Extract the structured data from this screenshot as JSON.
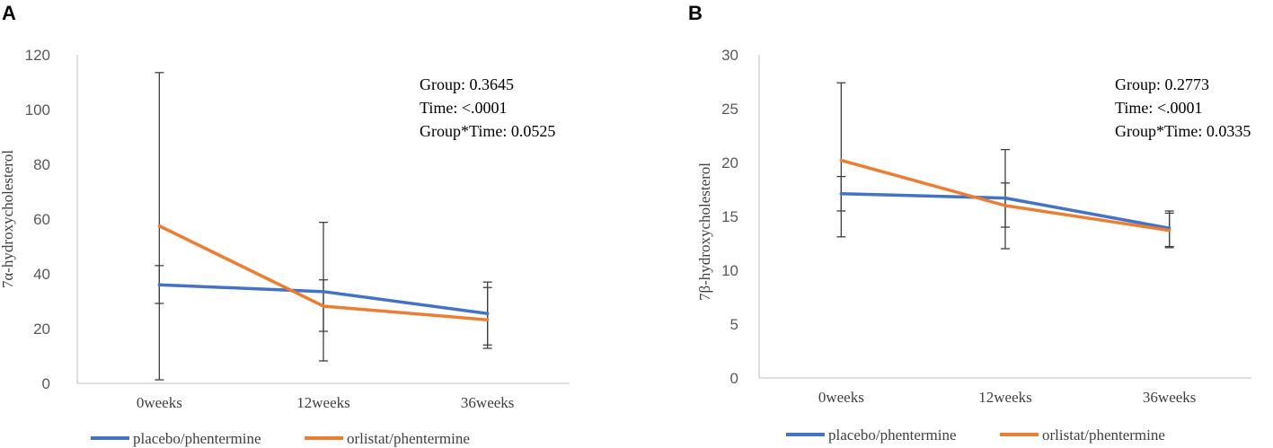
{
  "colors": {
    "placebo": "#4472C4",
    "orlistat": "#ED7D31"
  },
  "chart_data": [
    {
      "panel": "A",
      "type": "line",
      "ylabel": "7α-hydroxycholesterol",
      "xlabel": "",
      "categories": [
        "0weeks",
        "12weeks",
        "36weeks"
      ],
      "ylim": [
        0,
        120
      ],
      "yticks": [
        0,
        20,
        40,
        60,
        80,
        100,
        120
      ],
      "stats": [
        "Group: 0.3645",
        "Time: <.0001",
        "Group*Time: 0.0525"
      ],
      "series": [
        {
          "name": "placebo/phentermine",
          "color": "#4472C4",
          "values": [
            36,
            33.5,
            25.5
          ],
          "err_low": [
            29.2,
            19,
            14
          ],
          "err_high": [
            43,
            37.8,
            37
          ]
        },
        {
          "name": "orlistat/phentermine",
          "color": "#ED7D31",
          "values": [
            57.5,
            28.2,
            23.2
          ],
          "err_low": [
            1.3,
            8.2,
            12.8
          ],
          "err_high": [
            113.5,
            58.8,
            35
          ]
        }
      ]
    },
    {
      "panel": "B",
      "type": "line",
      "ylabel": "7β-hydroxycholesterol",
      "xlabel": "",
      "categories": [
        "0weeks",
        "12weeks",
        "36weeks"
      ],
      "ylim": [
        0,
        30
      ],
      "yticks": [
        0,
        5,
        10,
        15,
        20,
        25,
        30
      ],
      "stats": [
        "Group: 0.2773",
        "Time: <.0001",
        "Group*Time: 0.0335"
      ],
      "series": [
        {
          "name": "placebo/phentermine",
          "color": "#4472C4",
          "values": [
            17.1,
            16.7,
            13.9
          ],
          "err_low": [
            15.5,
            14,
            12.2
          ],
          "err_high": [
            18.7,
            18.1,
            15.5
          ]
        },
        {
          "name": "orlistat/phentermine",
          "color": "#ED7D31",
          "values": [
            20.2,
            16,
            13.7
          ],
          "err_low": [
            13.1,
            12,
            12.1
          ],
          "err_high": [
            27.4,
            21.2,
            15.3
          ]
        }
      ]
    }
  ]
}
